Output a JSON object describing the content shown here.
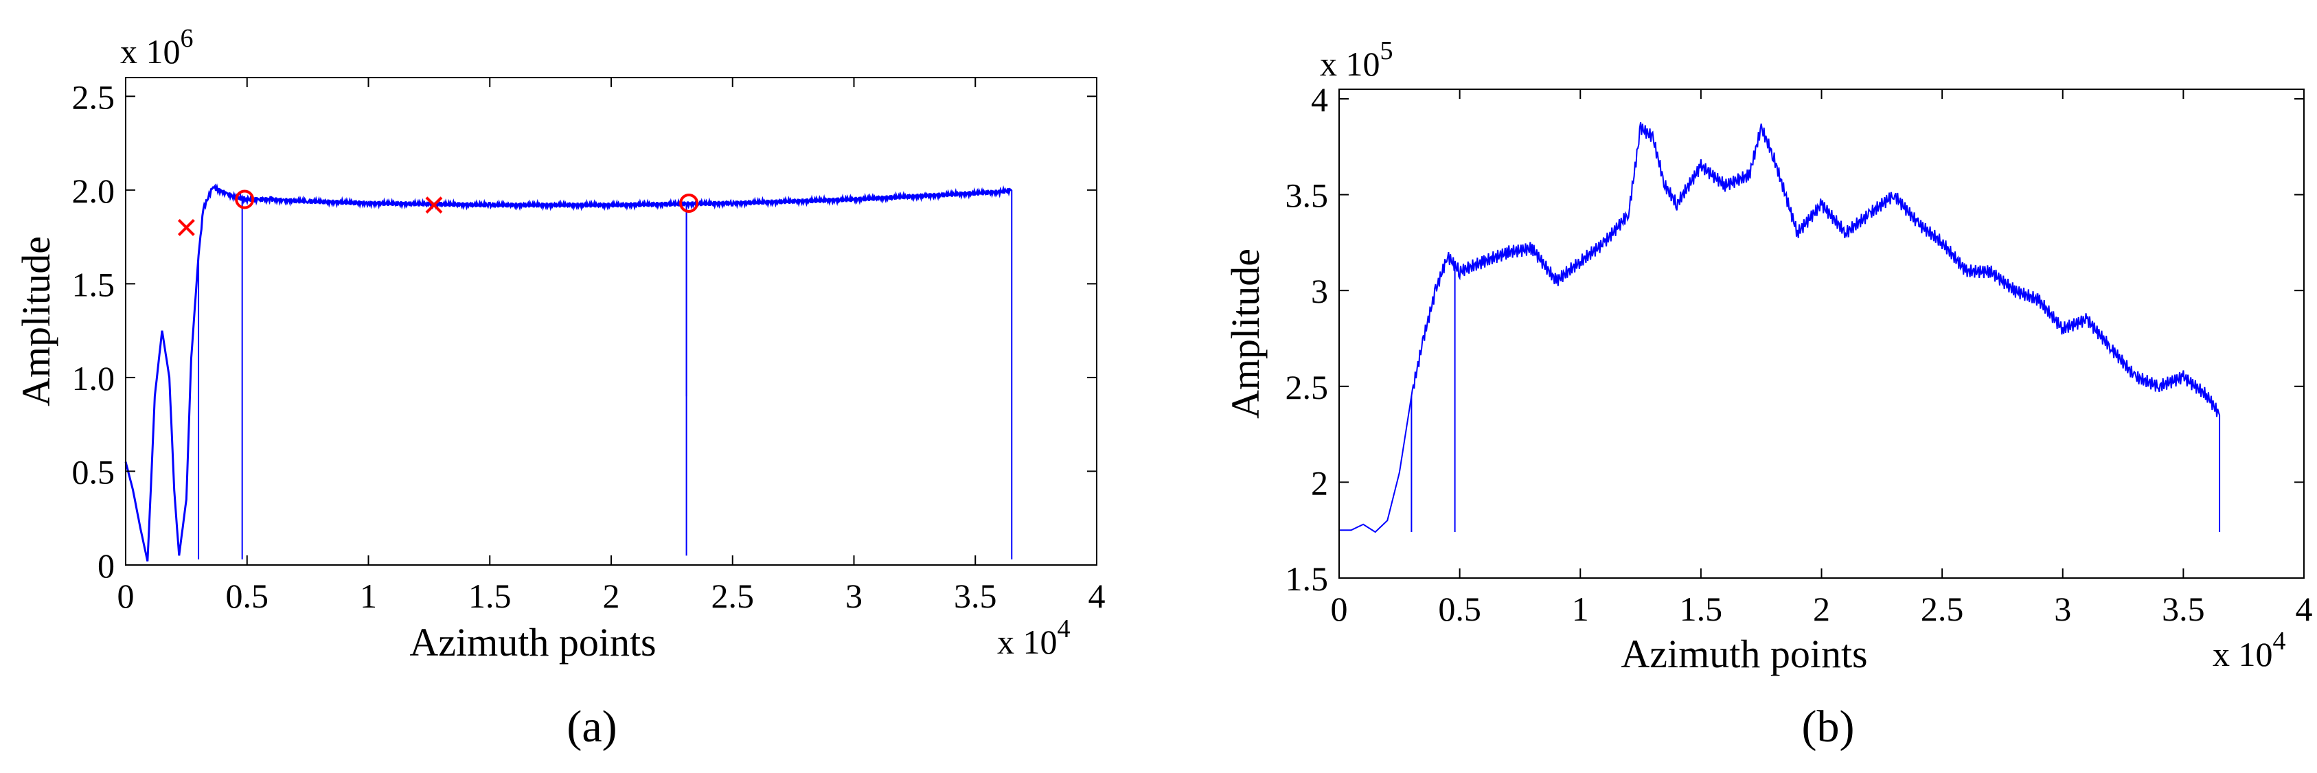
{
  "charts": [
    {
      "caption": "(a)",
      "multiplier_y": {
        "base": "x 10",
        "exp": "6"
      },
      "multiplier_x": {
        "base": "x 10",
        "exp": "4"
      },
      "xlabel_text": "Azimuth points",
      "ylabel_text": "Amplitude",
      "xticks": [
        "0",
        "0.5",
        "1",
        "1.5",
        "2",
        "2.5",
        "3",
        "3.5",
        "4"
      ],
      "yticks": [
        "0",
        "0.5",
        "1.0",
        "1.5",
        "2.0",
        "2.5"
      ]
    },
    {
      "caption": "(b)",
      "multiplier_y": {
        "base": "x 10",
        "exp": "5"
      },
      "multiplier_x": {
        "base": "x 10",
        "exp": "4"
      },
      "xlabel_text": "Azimuth points",
      "ylabel_text": "Amplitude",
      "xticks": [
        "0",
        "0.5",
        "1",
        "1.5",
        "2",
        "2.5",
        "3",
        "3.5",
        "4"
      ],
      "yticks": [
        "1.5",
        "2",
        "2.5",
        "3",
        "3.5",
        "4"
      ]
    }
  ],
  "chart_data": [
    {
      "type": "line",
      "xlabel": "Azimuth points",
      "ylabel": "Amplitude",
      "x_scale": "x 10^4",
      "y_scale": "x 10^6",
      "xlim": [
        0,
        4
      ],
      "ylim": [
        0,
        2.6
      ],
      "grid": false,
      "line_color": "#0000ff",
      "series": [
        {
          "x": [
            0,
            0.03,
            0.06,
            0.09,
            0.1,
            0.12,
            0.15,
            0.18,
            0.2,
            0.22,
            0.25,
            0.27,
            0.3,
            0.32,
            0.36,
            0.38,
            0.42,
            0.45,
            0.48,
            0.5,
            0.55,
            0.6,
            0.65,
            0.75,
            1,
            1.5,
            2,
            2.5,
            3,
            3.3,
            3.6,
            3.65
          ],
          "y": [
            0.55,
            0.4,
            0.2,
            0.02,
            0.3,
            0.9,
            1.25,
            1.0,
            0.4,
            0.05,
            0.35,
            1.1,
            1.65,
            1.9,
            2.02,
            2.0,
            1.98,
            1.96,
            1.955,
            1.95,
            1.95,
            1.95,
            1.945,
            1.94,
            1.93,
            1.92,
            1.92,
            1.93,
            1.95,
            1.97,
            1.99,
            2.0
          ]
        }
      ],
      "dropouts": [
        {
          "x": 0.3,
          "y_min": 0.03
        },
        {
          "x": 0.48,
          "y_min": 0.03
        },
        {
          "x": 2.31,
          "y_min": 0.9
        },
        {
          "x": 2.31,
          "y_min": 0.05
        },
        {
          "x": 3.65,
          "y_min": 0.03
        }
      ],
      "markers": [
        {
          "shape": "x",
          "color": "#ff0000",
          "x": 0.25,
          "y": 1.8
        },
        {
          "shape": "o",
          "color": "#ff0000",
          "x": 0.49,
          "y": 1.95
        },
        {
          "shape": "x",
          "color": "#ff0000",
          "x": 1.27,
          "y": 1.92
        },
        {
          "shape": "o",
          "color": "#ff0000",
          "x": 2.32,
          "y": 1.93
        }
      ]
    },
    {
      "type": "line",
      "xlabel": "Azimuth points",
      "ylabel": "Amplitude",
      "x_scale": "x 10^4",
      "y_scale": "x 10^5",
      "xlim": [
        0,
        4
      ],
      "ylim": [
        1.5,
        4.05
      ],
      "grid": false,
      "line_color": "#0000ff",
      "series": [
        {
          "x": [
            0,
            0.05,
            0.1,
            0.15,
            0.2,
            0.25,
            0.3,
            0.35,
            0.4,
            0.45,
            0.5,
            0.6,
            0.7,
            0.8,
            0.9,
            1.0,
            1.1,
            1.2,
            1.25,
            1.3,
            1.35,
            1.4,
            1.5,
            1.6,
            1.7,
            1.75,
            1.8,
            1.9,
            2.0,
            2.1,
            2.2,
            2.3,
            2.4,
            2.5,
            2.6,
            2.7,
            2.8,
            2.9,
            3.0,
            3.1,
            3.2,
            3.3,
            3.4,
            3.5,
            3.6,
            3.65
          ],
          "y": [
            1.75,
            1.75,
            1.78,
            1.74,
            1.8,
            2.05,
            2.45,
            2.75,
            3.0,
            3.18,
            3.1,
            3.15,
            3.2,
            3.22,
            3.05,
            3.15,
            3.25,
            3.4,
            3.85,
            3.8,
            3.55,
            3.45,
            3.65,
            3.55,
            3.6,
            3.85,
            3.7,
            3.3,
            3.45,
            3.3,
            3.4,
            3.5,
            3.35,
            3.25,
            3.1,
            3.1,
            3.0,
            2.95,
            2.8,
            2.85,
            2.7,
            2.55,
            2.5,
            2.55,
            2.45,
            2.35
          ]
        }
      ],
      "dropouts": [
        {
          "x": 0.3,
          "y_min": 1.74
        },
        {
          "x": 0.48,
          "y_min": 1.74
        },
        {
          "x": 3.65,
          "y_min": 1.74
        }
      ],
      "markers": []
    }
  ]
}
